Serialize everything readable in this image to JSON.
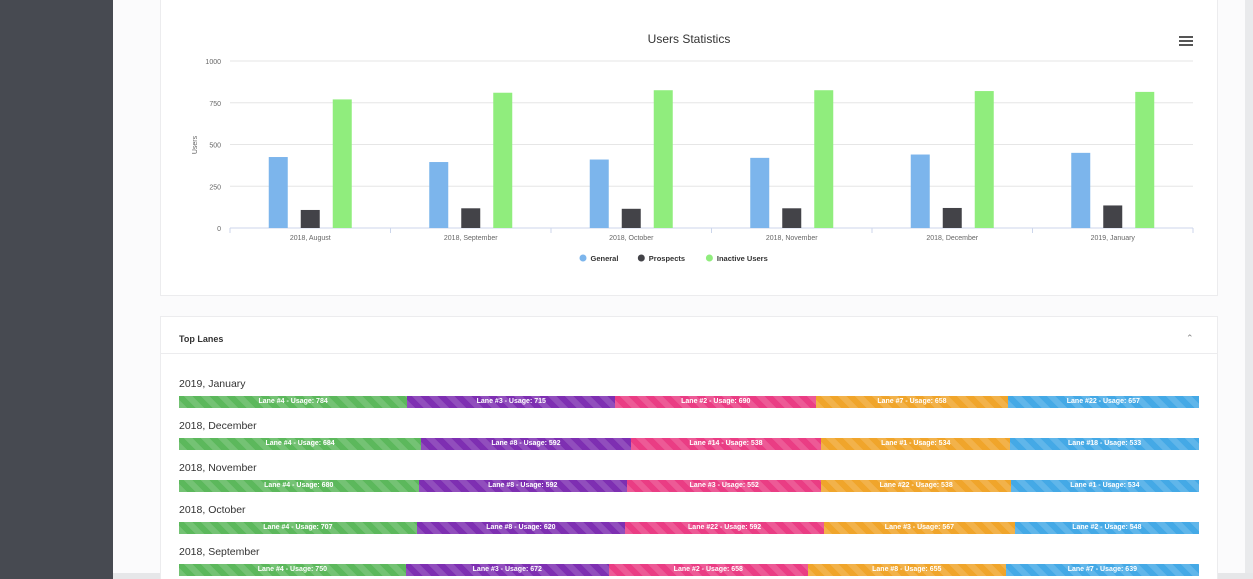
{
  "chart_data": {
    "type": "bar",
    "title": "Users Statistics",
    "ylabel": "Users",
    "xlabel": "",
    "ylim": [
      0,
      1000
    ],
    "yticks": [
      0,
      250,
      500,
      750,
      1000
    ],
    "categories": [
      "2018, August",
      "2018, September",
      "2018, October",
      "2018, November",
      "2018, December",
      "2019, January"
    ],
    "series": [
      {
        "name": "General",
        "color": "#7cb5ec",
        "values": [
          425,
          395,
          410,
          420,
          440,
          450
        ]
      },
      {
        "name": "Prospects",
        "color": "#434348",
        "values": [
          108,
          118,
          115,
          118,
          120,
          135
        ]
      },
      {
        "name": "Inactive Users",
        "color": "#90ed7d",
        "values": [
          770,
          810,
          825,
          825,
          820,
          815
        ]
      }
    ],
    "grid": true,
    "legend": "bottom-center"
  },
  "lanes": {
    "title": "Top Lanes",
    "toggle_icon": "chevron-up-icon",
    "months": [
      {
        "label": "2019, January",
        "segments": [
          {
            "text": "Lane #4 - Usage: 784",
            "value": 784,
            "color": "green"
          },
          {
            "text": "Lane #3 - Usage: 715",
            "value": 715,
            "color": "purple"
          },
          {
            "text": "Lane #2 - Usage: 690",
            "value": 690,
            "color": "pink"
          },
          {
            "text": "Lane #7 - Usage: 658",
            "value": 658,
            "color": "orange"
          },
          {
            "text": "Lane #22 - Usage: 657",
            "value": 657,
            "color": "blue"
          }
        ]
      },
      {
        "label": "2018, December",
        "segments": [
          {
            "text": "Lane #4 - Usage: 684",
            "value": 684,
            "color": "green"
          },
          {
            "text": "Lane #8 - Usage: 592",
            "value": 592,
            "color": "purple"
          },
          {
            "text": "Lane #14 - Usage: 538",
            "value": 538,
            "color": "pink"
          },
          {
            "text": "Lane #1 - Usage: 534",
            "value": 534,
            "color": "orange"
          },
          {
            "text": "Lane #18 - Usage: 533",
            "value": 533,
            "color": "blue"
          }
        ]
      },
      {
        "label": "2018, November",
        "segments": [
          {
            "text": "Lane #4 - Usage: 680",
            "value": 680,
            "color": "green"
          },
          {
            "text": "Lane #8 - Usage: 592",
            "value": 592,
            "color": "purple"
          },
          {
            "text": "Lane #3 - Usage: 552",
            "value": 552,
            "color": "pink"
          },
          {
            "text": "Lane #22 - Usage: 538",
            "value": 538,
            "color": "orange"
          },
          {
            "text": "Lane #1 - Usage: 534",
            "value": 534,
            "color": "blue"
          }
        ]
      },
      {
        "label": "2018, October",
        "segments": [
          {
            "text": "Lane #4 - Usage: 707",
            "value": 707,
            "color": "green"
          },
          {
            "text": "Lane #8 - Usage: 620",
            "value": 620,
            "color": "purple"
          },
          {
            "text": "Lane #22 - Usage: 592",
            "value": 592,
            "color": "pink"
          },
          {
            "text": "Lane #3 - Usage: 567",
            "value": 567,
            "color": "orange"
          },
          {
            "text": "Lane #2 - Usage: 548",
            "value": 548,
            "color": "blue"
          }
        ]
      },
      {
        "label": "2018, September",
        "segments": [
          {
            "text": "Lane #4 - Usage: 750",
            "value": 750,
            "color": "green"
          },
          {
            "text": "Lane #3 - Usage: 672",
            "value": 672,
            "color": "purple"
          },
          {
            "text": "Lane #2 - Usage: 658",
            "value": 658,
            "color": "pink"
          },
          {
            "text": "Lane #8 - Usage: 655",
            "value": 655,
            "color": "orange"
          },
          {
            "text": "Lane #7 - Usage: 639",
            "value": 639,
            "color": "blue"
          }
        ]
      }
    ]
  },
  "menu_icon": "hamburger-menu-icon"
}
